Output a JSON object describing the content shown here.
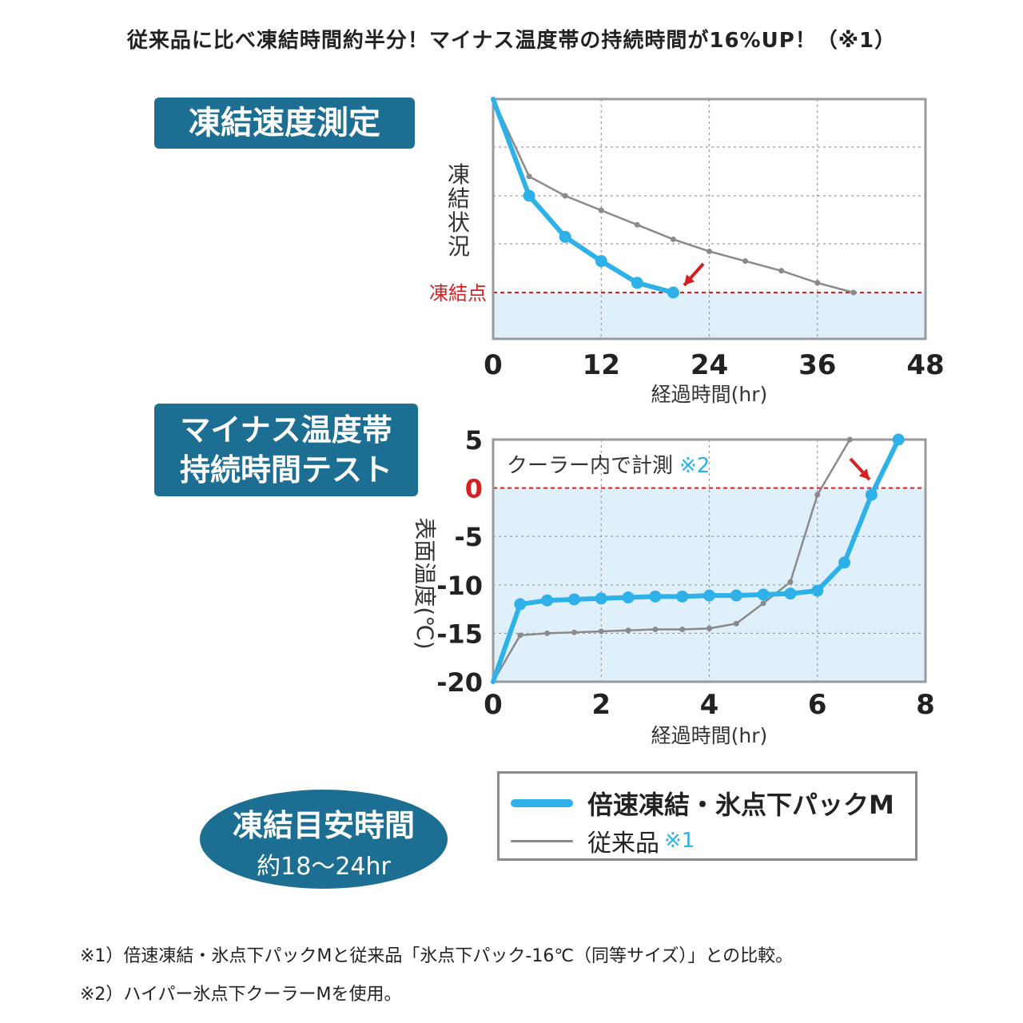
{
  "headline": "従来品に比べ凍結時間約半分！マイナス温度帯の持続時間が16%UP！（※1）",
  "badges": {
    "freeze_speed": "凍結速度測定",
    "minus_line1": "マイナス温度帯",
    "minus_line2": "持続時間テスト",
    "target_title": "凍結目安時間",
    "target_value": "約18〜24hr"
  },
  "legend": {
    "fast": "倍速凍結・氷点下パックM",
    "conventional": "従来品",
    "conventional_note": "※1"
  },
  "footnotes": {
    "note1": "※1）倍速凍結・氷点下パックMと従来品「氷点下パック-16℃（同等サイズ）」との比較。",
    "note2": "※2）ハイパー氷点下クーラーMを使用。"
  },
  "colors": {
    "fast": "#2eb1e8",
    "conventional": "#8a8a8a",
    "freeze_zone": "#dff0fa",
    "reference": "#d42020",
    "badge": "#1d6e93"
  },
  "chart_data": [
    {
      "type": "line",
      "xlabel": "経過時間(hr)",
      "ylabel": "凍結状況",
      "xlim": [
        0,
        48
      ],
      "xticks": [
        "0",
        "12",
        "24",
        "36",
        "48"
      ],
      "reference_label": "凍結点",
      "grid": true,
      "series": [
        {
          "name": "倍速凍結・氷点下パックM",
          "x": [
            0,
            4,
            8,
            12,
            16,
            20
          ],
          "y": [
            100,
            60,
            43,
            33,
            24,
            20
          ]
        },
        {
          "name": "従来品",
          "x": [
            0,
            4,
            8,
            12,
            16,
            20,
            24,
            28,
            32,
            36,
            40
          ],
          "y": [
            100,
            68,
            60,
            54,
            48,
            42,
            37,
            33,
            29,
            24,
            20
          ]
        }
      ]
    },
    {
      "type": "line",
      "xlabel": "経過時間(hr)",
      "ylabel": "表面温度(℃)",
      "xlim": [
        0,
        8
      ],
      "ylim": [
        -20,
        5
      ],
      "xticks": [
        "0",
        "2",
        "4",
        "6",
        "8"
      ],
      "yticks": [
        "5",
        "0",
        "-5",
        "-10",
        "-15",
        "-20"
      ],
      "annotation": "クーラー内で計測",
      "annotation_note": "※2",
      "grid": true,
      "series": [
        {
          "name": "倍速凍結・氷点下パックM",
          "x": [
            0,
            0.5,
            1,
            1.5,
            2,
            2.5,
            3,
            3.5,
            4,
            4.5,
            5,
            5.5,
            6,
            6.5,
            7,
            7.5
          ],
          "y": [
            -20,
            -12.0,
            -11.6,
            -11.5,
            -11.4,
            -11.3,
            -11.2,
            -11.2,
            -11.1,
            -11.1,
            -11.0,
            -10.9,
            -10.6,
            -7.7,
            -0.7,
            5
          ]
        },
        {
          "name": "従来品",
          "x": [
            0,
            0.5,
            1,
            1.5,
            2,
            2.5,
            3,
            3.5,
            4,
            4.5,
            5,
            5.5,
            6,
            6.6
          ],
          "y": [
            -20,
            -15.2,
            -15.0,
            -14.9,
            -14.8,
            -14.7,
            -14.6,
            -14.6,
            -14.5,
            -14.0,
            -11.9,
            -9.7,
            -0.7,
            5
          ]
        }
      ]
    }
  ]
}
